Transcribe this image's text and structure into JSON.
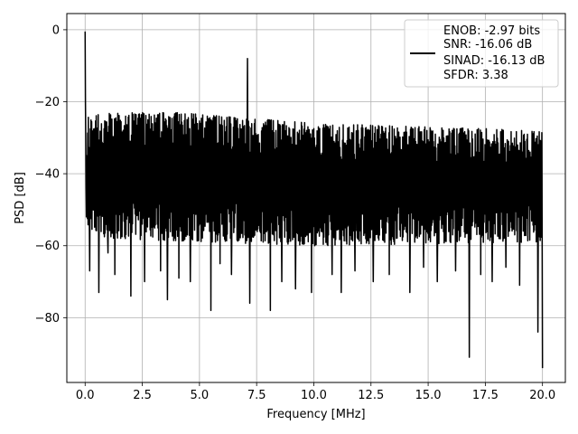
{
  "chart_data": {
    "type": "line",
    "title": "",
    "xlabel": "Frequency [MHz]",
    "ylabel": "PSD [dB]",
    "xlim": [
      -0.8,
      21.0
    ],
    "ylim": [
      -98,
      4.5
    ],
    "xticks": [
      0.0,
      2.5,
      5.0,
      7.5,
      10.0,
      12.5,
      15.0,
      17.5,
      20.0
    ],
    "xtick_labels": [
      "0.0",
      "2.5",
      "5.0",
      "7.5",
      "10.0",
      "12.5",
      "15.0",
      "17.5",
      "20.0"
    ],
    "yticks": [
      0,
      -20,
      -40,
      -60,
      -80
    ],
    "ytick_labels": [
      "0",
      "−20",
      "−40",
      "−60",
      "−80"
    ],
    "grid": true,
    "legend_position": "top-right",
    "series": [
      {
        "color": "#000000",
        "description": "dense noise floor spanning roughly -24 dB (peaks) to -58 dB (troughs), upper envelope easing from -23 dB at 1-4 MHz to -28 dB at 20 MHz",
        "envelope_upper": [
          [
            0.0,
            -24
          ],
          [
            1.0,
            -23
          ],
          [
            4.0,
            -23
          ],
          [
            10.0,
            -26
          ],
          [
            15.0,
            -27
          ],
          [
            20.0,
            -28
          ]
        ],
        "envelope_lower": [
          [
            0.0,
            -55
          ],
          [
            1.0,
            -58
          ],
          [
            10.0,
            -60
          ],
          [
            20.0,
            -59
          ]
        ],
        "peaks": [
          {
            "x": 0.0,
            "y": -0.5
          },
          {
            "x": 7.1,
            "y": -8
          }
        ],
        "spurs_down": [
          {
            "x": 0.2,
            "y": -67
          },
          {
            "x": 0.6,
            "y": -73
          },
          {
            "x": 1.0,
            "y": -62
          },
          {
            "x": 1.3,
            "y": -68
          },
          {
            "x": 2.0,
            "y": -74
          },
          {
            "x": 2.6,
            "y": -70
          },
          {
            "x": 3.3,
            "y": -67
          },
          {
            "x": 3.6,
            "y": -75
          },
          {
            "x": 4.1,
            "y": -69
          },
          {
            "x": 4.6,
            "y": -70
          },
          {
            "x": 5.5,
            "y": -78
          },
          {
            "x": 5.9,
            "y": -65
          },
          {
            "x": 6.4,
            "y": -68
          },
          {
            "x": 7.2,
            "y": -76
          },
          {
            "x": 8.1,
            "y": -78
          },
          {
            "x": 8.6,
            "y": -70
          },
          {
            "x": 9.2,
            "y": -72
          },
          {
            "x": 9.9,
            "y": -73
          },
          {
            "x": 10.8,
            "y": -68
          },
          {
            "x": 11.2,
            "y": -73
          },
          {
            "x": 11.8,
            "y": -67
          },
          {
            "x": 12.6,
            "y": -70
          },
          {
            "x": 13.3,
            "y": -68
          },
          {
            "x": 14.2,
            "y": -73
          },
          {
            "x": 14.8,
            "y": -66
          },
          {
            "x": 15.4,
            "y": -70
          },
          {
            "x": 16.2,
            "y": -67
          },
          {
            "x": 16.8,
            "y": -91
          },
          {
            "x": 17.3,
            "y": -68
          },
          {
            "x": 17.8,
            "y": -70
          },
          {
            "x": 18.4,
            "y": -66
          },
          {
            "x": 19.0,
            "y": -71
          },
          {
            "x": 19.8,
            "y": -84
          },
          {
            "x": 20.0,
            "y": -94
          }
        ]
      }
    ],
    "legend_entries": [
      "ENOB: -2.97 bits",
      "SNR: -16.06 dB",
      "SINAD: -16.13 dB",
      "SFDR: 3.38"
    ]
  }
}
